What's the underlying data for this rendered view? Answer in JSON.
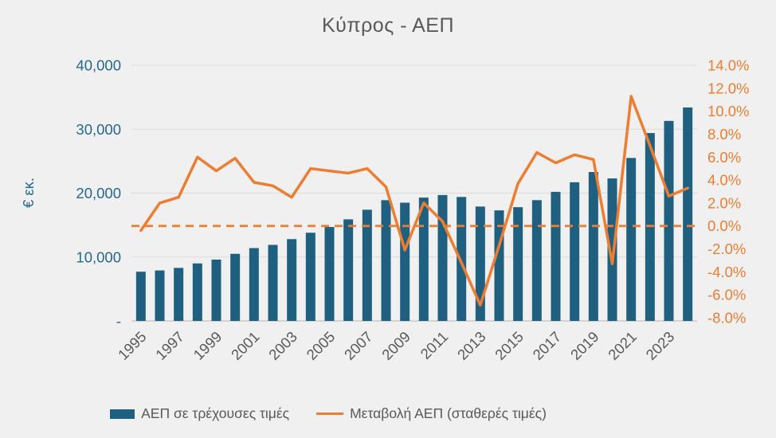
{
  "title": "Κύπρος - ΑΕΠ",
  "chart_data": {
    "type": "combo-bar-line",
    "categories": [
      1995,
      1996,
      1997,
      1998,
      1999,
      2000,
      2001,
      2002,
      2003,
      2004,
      2005,
      2006,
      2007,
      2008,
      2009,
      2010,
      2011,
      2012,
      2013,
      2014,
      2015,
      2016,
      2017,
      2018,
      2019,
      2020,
      2021,
      2022,
      2023,
      2024
    ],
    "x_tick_labels": [
      "1995",
      "1997",
      "1999",
      "2001",
      "2003",
      "2005",
      "2007",
      "2009",
      "2011",
      "2013",
      "2015",
      "2017",
      "2019",
      "2021",
      "2023"
    ],
    "series": [
      {
        "name": "ΑΕΠ σε τρέχουσες τιμές",
        "type": "bar",
        "axis": "left",
        "color": "#1F6080",
        "values": [
          7700,
          7900,
          8300,
          9000,
          9600,
          10500,
          11400,
          11900,
          12800,
          13800,
          14700,
          15900,
          17400,
          18900,
          18500,
          19300,
          19700,
          19400,
          17900,
          17300,
          17800,
          18900,
          20200,
          21700,
          23300,
          22300,
          25500,
          29400,
          31300,
          33400
        ]
      },
      {
        "name": "Μεταβολή ΑΕΠ (σταθερές τιμές)",
        "type": "line",
        "axis": "right",
        "color": "#ED7D31",
        "values": [
          -0.4,
          2.0,
          2.5,
          6.0,
          4.8,
          5.9,
          3.8,
          3.5,
          2.5,
          5.0,
          4.8,
          4.6,
          5.0,
          3.4,
          -2.1,
          2.0,
          0.4,
          -3.2,
          -6.9,
          -1.7,
          3.7,
          6.4,
          5.5,
          6.2,
          5.8,
          -3.3,
          11.3,
          7.0,
          2.6,
          3.3
        ]
      }
    ],
    "left_axis": {
      "title": "€ εκ.",
      "tick_labels_top_to_bottom": [
        "40,000",
        "30,000",
        "20,000",
        "10,000",
        "-"
      ],
      "min": 0,
      "max": 40000,
      "color": "#26688F"
    },
    "right_axis": {
      "tick_labels_top_to_bottom": [
        "14.0%",
        "12.0%",
        "10.0%",
        "8.0%",
        "6.0%",
        "4.0%",
        "2.0%",
        "0.0%",
        "-2.0%",
        "-4.0%",
        "-6.0%",
        "-8.0%"
      ],
      "min": -8,
      "max": 14,
      "step": 2,
      "color": "#ED7D31",
      "zero_line_style": "dashed"
    },
    "grid": true,
    "legend_position": "bottom",
    "text_color": "#595959",
    "gridline_color": "#DBDBDB",
    "baseline_color": "#C9C9C9",
    "background_color": "#F0F0F0"
  },
  "legend": {
    "items": [
      {
        "label": "ΑΕΠ σε τρέχουσες τιμές"
      },
      {
        "label": "Μεταβολή ΑΕΠ (σταθερές τιμές)"
      }
    ]
  }
}
